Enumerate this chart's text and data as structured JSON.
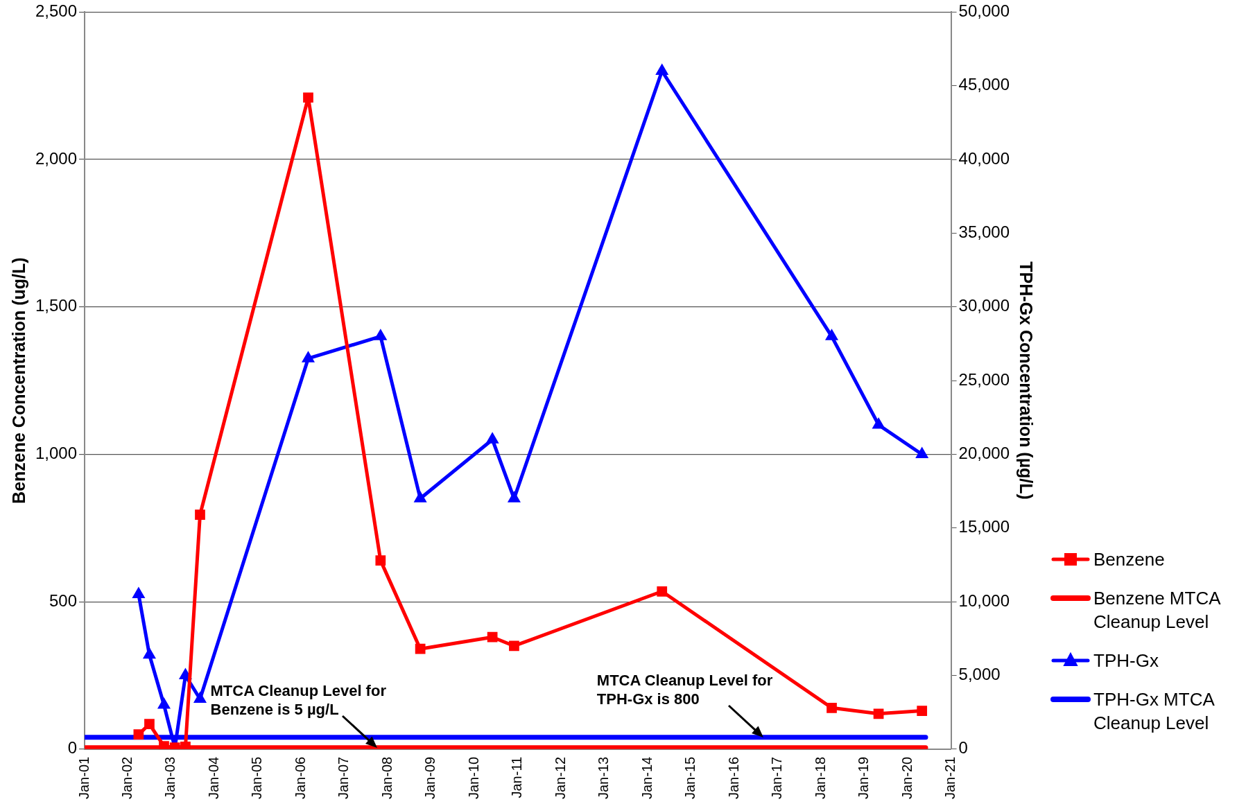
{
  "chart_data": {
    "type": "line",
    "xlabel": null,
    "ylabel": "Benzene Concentration (ug/L)",
    "y2label": "TPH-Gx Concentration (µg/L)",
    "xlim": [
      "2001-01",
      "2021-01"
    ],
    "xticks": [
      {
        "value": "2001-01",
        "label": "Jan-01"
      },
      {
        "value": "2002-01",
        "label": "Jan-02"
      },
      {
        "value": "2003-01",
        "label": "Jan-03"
      },
      {
        "value": "2004-01",
        "label": "Jan-04"
      },
      {
        "value": "2005-01",
        "label": "Jan-05"
      },
      {
        "value": "2006-01",
        "label": "Jan-06"
      },
      {
        "value": "2007-01",
        "label": "Jan-07"
      },
      {
        "value": "2008-01",
        "label": "Jan-08"
      },
      {
        "value": "2009-01",
        "label": "Jan-09"
      },
      {
        "value": "2010-01",
        "label": "Jan-10"
      },
      {
        "value": "2011-01",
        "label": "Jan-11"
      },
      {
        "value": "2012-01",
        "label": "Jan-12"
      },
      {
        "value": "2013-01",
        "label": "Jan-13"
      },
      {
        "value": "2014-01",
        "label": "Jan-14"
      },
      {
        "value": "2015-01",
        "label": "Jan-15"
      },
      {
        "value": "2016-01",
        "label": "Jan-16"
      },
      {
        "value": "2017-01",
        "label": "Jan-17"
      },
      {
        "value": "2018-01",
        "label": "Jan-18"
      },
      {
        "value": "2019-01",
        "label": "Jan-19"
      },
      {
        "value": "2020-01",
        "label": "Jan-20"
      },
      {
        "value": "2021-01",
        "label": "Jan-21"
      }
    ],
    "ylim": [
      0,
      2500
    ],
    "yticks": [
      0,
      500,
      {
        "value": 1000,
        "label": "1,000"
      },
      {
        "value": 1500,
        "label": "1,500"
      },
      {
        "value": 2000,
        "label": "2,000"
      },
      {
        "value": 2500,
        "label": "2,500"
      }
    ],
    "y2lim": [
      0,
      50000
    ],
    "y2ticks": [
      0,
      {
        "value": 5000,
        "label": "5,000"
      },
      {
        "value": 10000,
        "label": "10,000"
      },
      {
        "value": 15000,
        "label": "15,000"
      },
      {
        "value": 20000,
        "label": "20,000"
      },
      {
        "value": 25000,
        "label": "25,000"
      },
      {
        "value": 30000,
        "label": "30,000"
      },
      {
        "value": 35000,
        "label": "35,000"
      },
      {
        "value": 40000,
        "label": "40,000"
      },
      {
        "value": 45000,
        "label": "45,000"
      },
      {
        "value": 50000,
        "label": "50,000"
      }
    ],
    "grid": "y",
    "legend": "right",
    "series": [
      {
        "name": "Benzene",
        "color": "#ff0000",
        "marker": "square",
        "line_style": "solid",
        "x": [
          "2002-04",
          "2002-07",
          "2002-11",
          "2003-02",
          "2003-05",
          "2003-09",
          "2006-03",
          "2007-11",
          "2008-10",
          "2010-06",
          "2010-12",
          "2014-05",
          "2018-04",
          "2019-05",
          "2020-05"
        ],
        "values": [
          50,
          85,
          10,
          5,
          8,
          795,
          2210,
          640,
          340,
          380,
          350,
          535,
          140,
          120,
          130
        ]
      },
      {
        "name": "Benzene MTCA Cleanup Level",
        "color": "#ff0000",
        "marker": "none",
        "line_style": "solid",
        "x": [
          "2001-01",
          "2020-06"
        ],
        "values": [
          5,
          5
        ]
      },
      {
        "name": "TPH-Gx",
        "color": "#0000ff",
        "marker": "triangle",
        "line_style": "solid",
        "axis": "y2",
        "x": [
          "2002-04",
          "2002-07",
          "2002-11",
          "2003-02",
          "2003-05",
          "2003-09",
          "2006-03",
          "2007-11",
          "2008-10",
          "2010-06",
          "2010-12",
          "2014-05",
          "2018-04",
          "2019-05",
          "2020-05"
        ],
        "values": [
          10500,
          6400,
          3000,
          100,
          5000,
          3400,
          26500,
          28000,
          17000,
          21000,
          17000,
          46000,
          28000,
          22000,
          20000
        ]
      },
      {
        "name": "TPH-Gx MTCA Cleanup Level",
        "color": "#0000ff",
        "marker": "none",
        "line_style": "solid",
        "axis": "y2",
        "x": [
          "2001-01",
          "2020-06"
        ],
        "values": [
          800,
          800
        ]
      }
    ],
    "annotations": [
      {
        "text": "MTCA Cleanup Level for Benzene is 5 µg/L",
        "x": "2007-10",
        "y": 5
      },
      {
        "text": "MTCA Cleanup Level for TPH-Gx is 800",
        "x": "2016-09",
        "y": 40
      }
    ]
  }
}
